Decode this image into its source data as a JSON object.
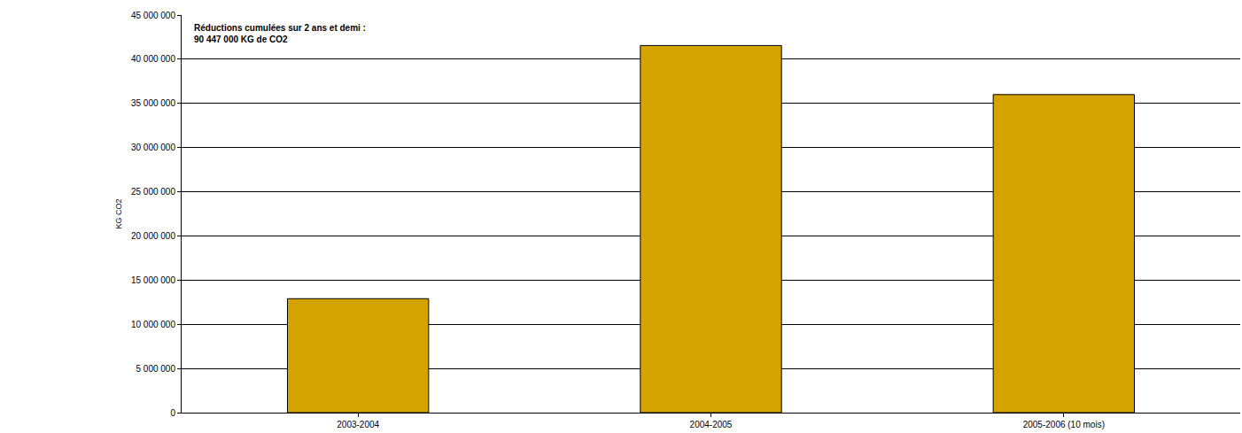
{
  "chart_data": {
    "type": "bar",
    "y_label": "KG CO2",
    "categories": [
      "2003-2004",
      "2004-2005",
      "2005-2006 (10 mois)"
    ],
    "values": [
      12900000,
      41550000,
      36000000
    ],
    "color": "#d4a300",
    "ylim": [
      0,
      45000000
    ],
    "yticks": [
      0,
      {
        "value": 5000000,
        "label": "5 000 000"
      },
      {
        "value": 10000000,
        "label": "10 000 000"
      },
      {
        "value": 15000000,
        "label": "15 000 000"
      },
      {
        "value": 20000000,
        "label": "20 000 000"
      },
      {
        "value": 25000000,
        "label": "25 000 000"
      },
      {
        "value": 30000000,
        "label": "30 000 000"
      },
      {
        "value": 35000000,
        "label": "35 000 000"
      },
      {
        "value": 40000000,
        "label": "40 000 000"
      },
      {
        "value": 45000000,
        "label": "45 000 000"
      }
    ],
    "grid": true,
    "annotations": [
      {
        "text": "Réductions cumulées sur 2 ans et demi :\n90 447 000 KG de CO2"
      }
    ]
  }
}
